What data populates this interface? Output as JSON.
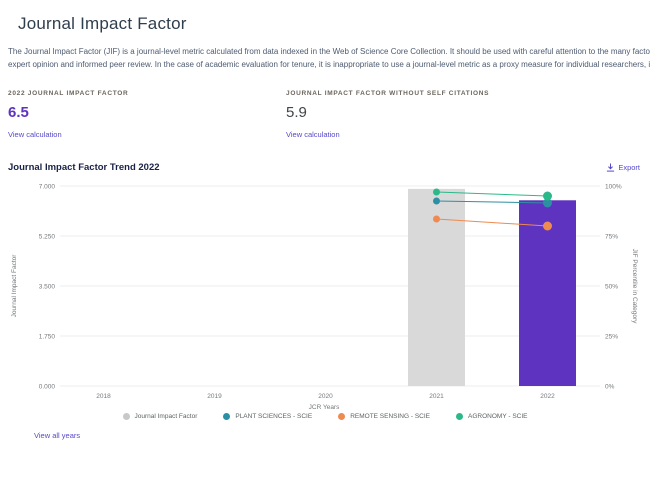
{
  "page": {
    "title": "Journal Impact Factor",
    "description_line1": "The Journal Impact Factor (JIF) is a journal-level metric calculated from data indexed in the Web of Science Core Collection. It should be used with careful attention to the many factors that influence ci",
    "description_line2": "expert opinion and informed peer review. In the case of academic evaluation for tenure, it is inappropriate to use a journal-level metric as a proxy measure for individual researchers, institutions, or arti"
  },
  "metrics": [
    {
      "label": "2022 JOURNAL IMPACT FACTOR",
      "value": "6.5",
      "link": "View calculation"
    },
    {
      "label": "JOURNAL IMPACT FACTOR WITHOUT SELF CITATIONS",
      "value": "5.9",
      "link": "View calculation"
    }
  ],
  "trend": {
    "title": "Journal Impact Factor Trend 2022",
    "export_label": "Export",
    "view_all_label": "View all years"
  },
  "chart_data": {
    "type": "bar",
    "title": "Journal Impact Factor Trend 2022",
    "categories": [
      "2018",
      "2019",
      "2020",
      "2021",
      "2022"
    ],
    "xlabel": "JCR Years",
    "left_axis": {
      "label": "Journal Impact Factor",
      "ticks": [
        "7.000",
        "5.250",
        "3.500",
        "1.750",
        "0.000"
      ],
      "min": 0,
      "max": 7
    },
    "right_axis": {
      "label": "JIF Percentile in Category",
      "ticks": [
        "100%",
        "75%",
        "50%",
        "25%",
        "0%"
      ],
      "min": 0,
      "max": 100
    },
    "grid": true,
    "bar_series": {
      "name": "Journal Impact Factor",
      "values": [
        null,
        null,
        null,
        6.9,
        6.5
      ],
      "colors": [
        null,
        null,
        null,
        "#d9d9d9",
        "#5e33bf"
      ]
    },
    "line_series": [
      {
        "name": "PLANT SCIENCES - SCIE",
        "color": "#2d8fa3",
        "values": [
          null,
          null,
          null,
          92.5,
          91.5
        ]
      },
      {
        "name": "REMOTE SENSING - SCIE",
        "color": "#ef8a50",
        "values": [
          null,
          null,
          null,
          83.5,
          80
        ]
      },
      {
        "name": "AGRONOMY - SCIE",
        "color": "#2bb98a",
        "values": [
          null,
          null,
          null,
          97,
          95
        ]
      }
    ],
    "legend": [
      {
        "label": "Journal Impact Factor",
        "color": "#c8c8c8"
      },
      {
        "label": "PLANT SCIENCES - SCIE",
        "color": "#2d8fa3"
      },
      {
        "label": "REMOTE SENSING - SCIE",
        "color": "#ef8a50"
      },
      {
        "label": "AGRONOMY - SCIE",
        "color": "#2bb98a"
      }
    ],
    "colors": {
      "accent_purple": "#5e33bf",
      "bar_gray": "#d9d9d9",
      "link": "#5549c9"
    }
  }
}
